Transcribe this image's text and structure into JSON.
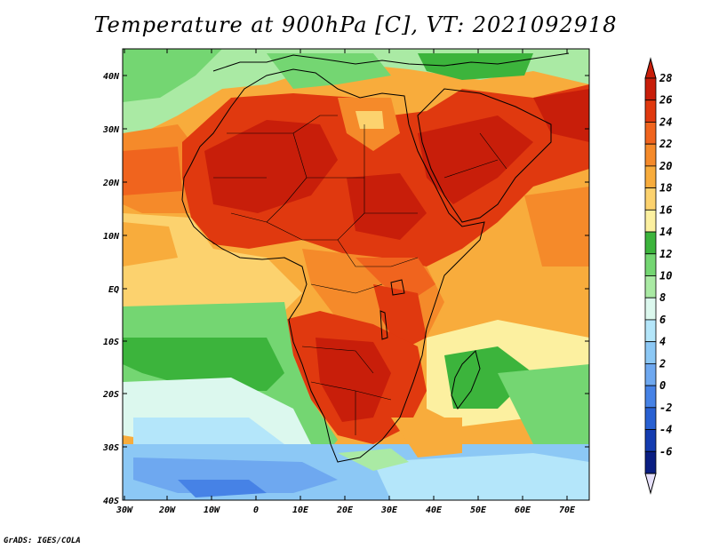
{
  "title": "Temperature at 900hPa [C], VT: 2021092918",
  "credit": "GrADS: IGES/COLA",
  "map": {
    "lat_labels": [
      "40N",
      "30N",
      "20N",
      "10N",
      "EQ",
      "10S",
      "20S",
      "30S",
      "40S"
    ],
    "lon_labels": [
      "30W",
      "20W",
      "10W",
      "0",
      "10E",
      "20E",
      "30E",
      "40E",
      "50E",
      "60E",
      "70E"
    ]
  },
  "colorbar": {
    "labels": [
      "28",
      "26",
      "24",
      "22",
      "20",
      "18",
      "16",
      "14",
      "12",
      "10",
      "8",
      "6",
      "4",
      "2",
      "0",
      "-2",
      "-4",
      "-6"
    ],
    "colors": [
      "#c81e0a",
      "#e0390f",
      "#f0641e",
      "#f58a2a",
      "#f8ac3c",
      "#fcd26e",
      "#fcf0a0",
      "#3cb43c",
      "#74d672",
      "#aaeaa4",
      "#dcf8ee",
      "#b4e6fa",
      "#8cc8f5",
      "#6ea8f0",
      "#4682e6",
      "#2860d2",
      "#143cb0",
      "#0a1e82"
    ],
    "top_color": "#c81e0a",
    "bottom_color": "#e6e0fa"
  }
}
